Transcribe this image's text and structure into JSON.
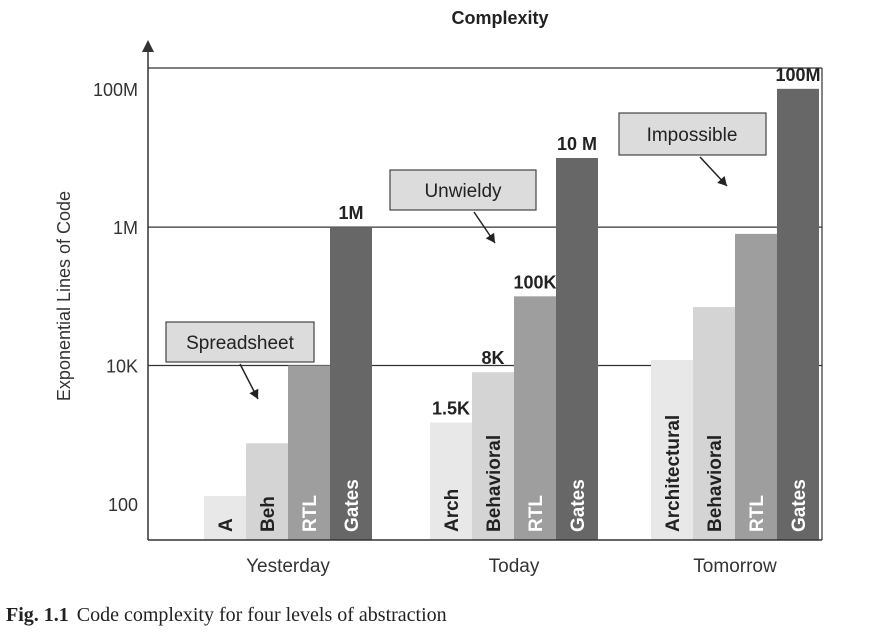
{
  "caption": {
    "label": "Fig. 1.1",
    "text": "Code complexity for four levels of abstraction"
  },
  "chart_data": {
    "type": "bar",
    "title": "Complexity",
    "xlabel": "",
    "ylabel": "Exponential Lines of Code",
    "y_scale": "log",
    "ylim": [
      30,
      200000000
    ],
    "yticks": [
      {
        "value": 100,
        "label": "100"
      },
      {
        "value": 10000,
        "label": "10K"
      },
      {
        "value": 1000000,
        "label": "1M"
      },
      {
        "value": 100000000,
        "label": "100M"
      }
    ],
    "gridlines": [
      10000,
      1000000
    ],
    "groups": [
      {
        "category": "Yesterday",
        "bars": [
          {
            "label": "A",
            "value": 130,
            "value_label": "",
            "color": "#e8e8e8",
            "label_color": "#222222"
          },
          {
            "label": "Beh",
            "value": 750,
            "value_label": "",
            "color": "#d4d4d4",
            "label_color": "#222222"
          },
          {
            "label": "RTL",
            "value": 10000,
            "value_label": "",
            "color": "#9e9e9e",
            "label_color": "#ffffff"
          },
          {
            "label": "Gates",
            "value": 1000000,
            "value_label": "1M",
            "color": "#676767",
            "label_color": "#ffffff"
          }
        ]
      },
      {
        "category": "Today",
        "bars": [
          {
            "label": "Arch",
            "value": 1500,
            "value_label": "1.5K",
            "color": "#e8e8e8",
            "label_color": "#222222"
          },
          {
            "label": "Behavioral",
            "value": 8000,
            "value_label": "8K",
            "color": "#d4d4d4",
            "label_color": "#222222"
          },
          {
            "label": "RTL",
            "value": 100000,
            "value_label": "100K",
            "color": "#9e9e9e",
            "label_color": "#ffffff"
          },
          {
            "label": "Gates",
            "value": 10000000,
            "value_label": "10 M",
            "color": "#676767",
            "label_color": "#ffffff"
          }
        ]
      },
      {
        "category": "Tomorrow",
        "bars": [
          {
            "label": "Architectural",
            "value": 12000,
            "value_label": "",
            "color": "#e8e8e8",
            "label_color": "#222222"
          },
          {
            "label": "Behavioral",
            "value": 70000,
            "value_label": "",
            "color": "#d4d4d4",
            "label_color": "#222222"
          },
          {
            "label": "RTL",
            "value": 800000,
            "value_label": "",
            "color": "#9e9e9e",
            "label_color": "#ffffff"
          },
          {
            "label": "Gates",
            "value": 100000000,
            "value_label": "100M",
            "color": "#676767",
            "label_color": "#ffffff"
          }
        ]
      }
    ],
    "annotations": [
      {
        "text": "Spreadsheet",
        "group": "Yesterday"
      },
      {
        "text": "Unwieldy",
        "group": "Today"
      },
      {
        "text": "Impossible",
        "group": "Tomorrow"
      }
    ]
  }
}
